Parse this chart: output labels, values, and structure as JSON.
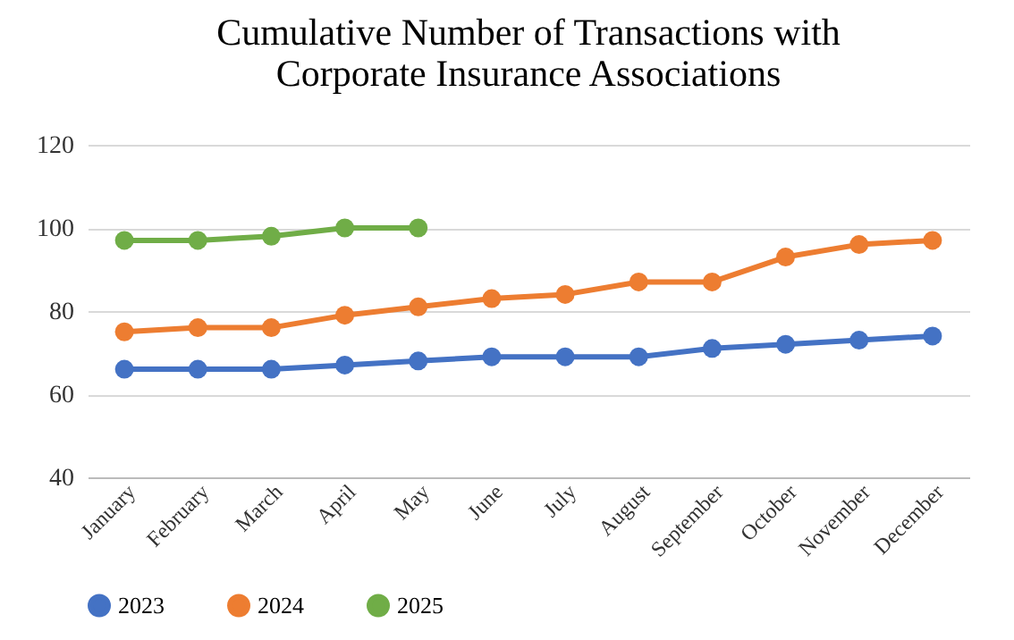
{
  "chart_data": {
    "type": "line",
    "title": "Cumulative Number of Transactions with Corporate Insurance Associations",
    "categories": [
      "January",
      "February",
      "March",
      "April",
      "May",
      "June",
      "July",
      "August",
      "September",
      "October",
      "November",
      "December"
    ],
    "series": [
      {
        "name": "2023",
        "color": "#4472c4",
        "values": [
          66,
          66,
          66,
          67,
          68,
          69,
          69,
          69,
          71,
          72,
          73,
          74
        ]
      },
      {
        "name": "2024",
        "color": "#ed7d31",
        "values": [
          75,
          76,
          76,
          79,
          81,
          83,
          84,
          87,
          87,
          93,
          96,
          97
        ]
      },
      {
        "name": "2025",
        "color": "#70ad47",
        "values": [
          97,
          97,
          98,
          100,
          100,
          null,
          null,
          null,
          null,
          null,
          null,
          null
        ]
      }
    ],
    "ylim": [
      40,
      120
    ],
    "yticks": [
      40,
      60,
      80,
      100,
      120
    ],
    "grid": "y",
    "legend": "bottom",
    "marker": "circle",
    "line_style": "solid"
  }
}
